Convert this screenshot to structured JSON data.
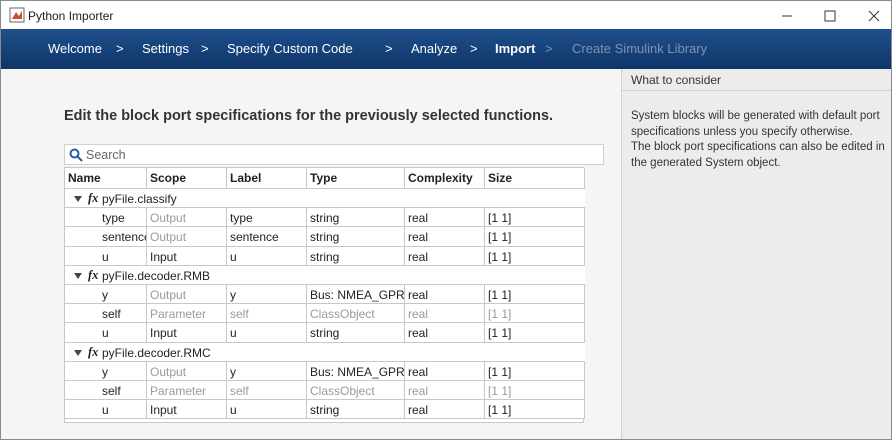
{
  "window": {
    "title": "Python Importer"
  },
  "nav": {
    "steps": [
      "Welcome",
      "Settings",
      "Specify Custom Code",
      "Analyze",
      "Import",
      "Create Simulink Library"
    ],
    "separator": ">"
  },
  "heading": "Edit the block port specifications for the previously selected functions.",
  "search": {
    "placeholder": "Search"
  },
  "table": {
    "columns": [
      "Name",
      "Scope",
      "Label",
      "Type",
      "Complexity",
      "Size"
    ],
    "function_icon": "fx",
    "groups": [
      {
        "name": "pyFile.classify",
        "rows": [
          [
            "type",
            "Output",
            "type",
            "string",
            "real",
            "[1 1]"
          ],
          [
            "sentence",
            "Output",
            "sentence",
            "string",
            "real",
            "[1 1]"
          ],
          [
            "u",
            "Input",
            "u",
            "string",
            "real",
            "[1 1]"
          ]
        ]
      },
      {
        "name": "pyFile.decoder.RMB",
        "rows": [
          [
            "y",
            "Output",
            "y",
            "Bus: NMEA_GPRMB",
            "real",
            "[1 1]"
          ],
          [
            "self",
            "Parameter",
            "self",
            "ClassObject",
            "real",
            "[1 1]"
          ],
          [
            "u",
            "Input",
            "u",
            "string",
            "real",
            "[1 1]"
          ]
        ]
      },
      {
        "name": "pyFile.decoder.RMC",
        "rows": [
          [
            "y",
            "Output",
            "y",
            "Bus: NMEA_GPRMC",
            "real",
            "[1 1]"
          ],
          [
            "self",
            "Parameter",
            "self",
            "ClassObject",
            "real",
            "[1 1]"
          ],
          [
            "u",
            "Input",
            "u",
            "string",
            "real",
            "[1 1]"
          ]
        ]
      }
    ]
  },
  "sidebar": {
    "title": "What to consider",
    "paragraphs": [
      "System blocks will be generated with default port specifications unless you specify otherwise.",
      "The block port specifications can also be edited in the generated System object."
    ]
  }
}
